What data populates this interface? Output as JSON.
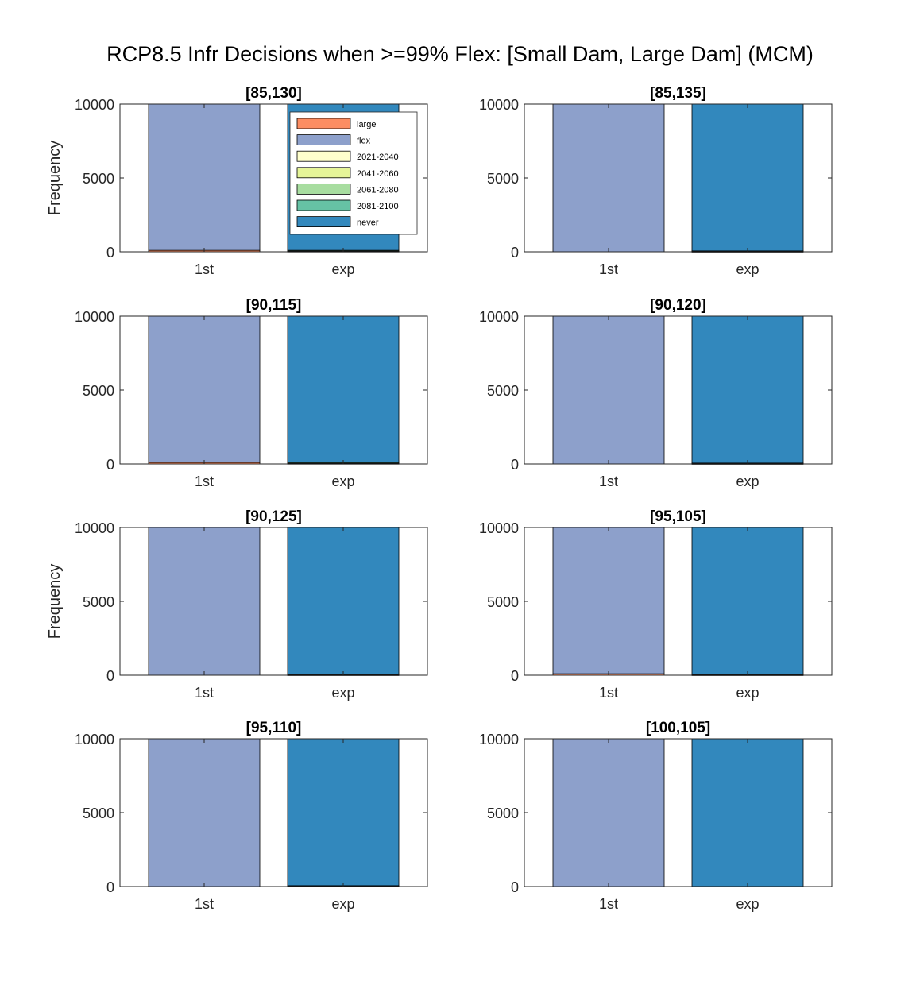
{
  "figure": {
    "suptitle": "RCP8.5 Infr Decisions when >=99% Flex: [Small Dam, Large Dam] (MCM)"
  },
  "colors": {
    "large": "#fc8d62",
    "flex": "#8da0cb",
    "2021-2040": "#ffffcc",
    "2041-2060": "#e6f598",
    "2061-2080": "#a8dda0",
    "2081-2100": "#66c2a5",
    "never": "#3288bd"
  },
  "legend": {
    "entries": [
      "large",
      "flex",
      "2021-2040",
      "2041-2060",
      "2061-2080",
      "2081-2100",
      "never"
    ],
    "placement": "inside top-right of first panel"
  },
  "chart_data": [
    {
      "type": "bar",
      "stacked": true,
      "title": "[85,130]",
      "categories": [
        "1st",
        "exp"
      ],
      "ylabel": "Frequency",
      "ylim": [
        0,
        10000
      ],
      "yticks": [
        0,
        5000,
        10000
      ],
      "grid": false,
      "series": [
        {
          "name": "large",
          "values": [
            100,
            0
          ]
        },
        {
          "name": "flex",
          "values": [
            9900,
            0
          ]
        },
        {
          "name": "2021-2040",
          "values": [
            0,
            0
          ]
        },
        {
          "name": "2041-2060",
          "values": [
            0,
            20
          ]
        },
        {
          "name": "2061-2080",
          "values": [
            0,
            30
          ]
        },
        {
          "name": "2081-2100",
          "values": [
            0,
            50
          ]
        },
        {
          "name": "never",
          "values": [
            0,
            9900
          ]
        }
      ]
    },
    {
      "type": "bar",
      "stacked": true,
      "title": "[85,135]",
      "categories": [
        "1st",
        "exp"
      ],
      "ylabel": "",
      "ylim": [
        0,
        10000
      ],
      "yticks": [
        0,
        5000,
        10000
      ],
      "grid": false,
      "series": [
        {
          "name": "large",
          "values": [
            0,
            0
          ]
        },
        {
          "name": "flex",
          "values": [
            10000,
            0
          ]
        },
        {
          "name": "2021-2040",
          "values": [
            0,
            0
          ]
        },
        {
          "name": "2041-2060",
          "values": [
            0,
            10
          ]
        },
        {
          "name": "2061-2080",
          "values": [
            0,
            20
          ]
        },
        {
          "name": "2081-2100",
          "values": [
            0,
            30
          ]
        },
        {
          "name": "never",
          "values": [
            0,
            9940
          ]
        }
      ]
    },
    {
      "type": "bar",
      "stacked": true,
      "title": "[90,115]",
      "categories": [
        "1st",
        "exp"
      ],
      "ylabel": "",
      "ylim": [
        0,
        10000
      ],
      "yticks": [
        0,
        5000,
        10000
      ],
      "grid": false,
      "series": [
        {
          "name": "large",
          "values": [
            100,
            0
          ]
        },
        {
          "name": "flex",
          "values": [
            9900,
            0
          ]
        },
        {
          "name": "2021-2040",
          "values": [
            0,
            0
          ]
        },
        {
          "name": "2041-2060",
          "values": [
            0,
            20
          ]
        },
        {
          "name": "2061-2080",
          "values": [
            0,
            40
          ]
        },
        {
          "name": "2081-2100",
          "values": [
            0,
            60
          ]
        },
        {
          "name": "never",
          "values": [
            0,
            9880
          ]
        }
      ]
    },
    {
      "type": "bar",
      "stacked": true,
      "title": "[90,120]",
      "categories": [
        "1st",
        "exp"
      ],
      "ylabel": "",
      "ylim": [
        0,
        10000
      ],
      "yticks": [
        0,
        5000,
        10000
      ],
      "grid": false,
      "series": [
        {
          "name": "large",
          "values": [
            0,
            0
          ]
        },
        {
          "name": "flex",
          "values": [
            10000,
            0
          ]
        },
        {
          "name": "2021-2040",
          "values": [
            0,
            0
          ]
        },
        {
          "name": "2041-2060",
          "values": [
            0,
            10
          ]
        },
        {
          "name": "2061-2080",
          "values": [
            0,
            20
          ]
        },
        {
          "name": "2081-2100",
          "values": [
            0,
            30
          ]
        },
        {
          "name": "never",
          "values": [
            0,
            9940
          ]
        }
      ]
    },
    {
      "type": "bar",
      "stacked": true,
      "title": "[90,125]",
      "categories": [
        "1st",
        "exp"
      ],
      "ylabel": "Frequency",
      "ylim": [
        0,
        10000
      ],
      "yticks": [
        0,
        5000,
        10000
      ],
      "grid": false,
      "series": [
        {
          "name": "large",
          "values": [
            0,
            0
          ]
        },
        {
          "name": "flex",
          "values": [
            10000,
            0
          ]
        },
        {
          "name": "2021-2040",
          "values": [
            0,
            0
          ]
        },
        {
          "name": "2041-2060",
          "values": [
            0,
            10
          ]
        },
        {
          "name": "2061-2080",
          "values": [
            0,
            20
          ]
        },
        {
          "name": "2081-2100",
          "values": [
            0,
            30
          ]
        },
        {
          "name": "never",
          "values": [
            0,
            9940
          ]
        }
      ]
    },
    {
      "type": "bar",
      "stacked": true,
      "title": "[95,105]",
      "categories": [
        "1st",
        "exp"
      ],
      "ylabel": "",
      "ylim": [
        0,
        10000
      ],
      "yticks": [
        0,
        5000,
        10000
      ],
      "grid": false,
      "series": [
        {
          "name": "large",
          "values": [
            100,
            0
          ]
        },
        {
          "name": "flex",
          "values": [
            9900,
            0
          ]
        },
        {
          "name": "2021-2040",
          "values": [
            0,
            0
          ]
        },
        {
          "name": "2041-2060",
          "values": [
            0,
            10
          ]
        },
        {
          "name": "2061-2080",
          "values": [
            0,
            20
          ]
        },
        {
          "name": "2081-2100",
          "values": [
            0,
            30
          ]
        },
        {
          "name": "never",
          "values": [
            0,
            9940
          ]
        }
      ]
    },
    {
      "type": "bar",
      "stacked": true,
      "title": "[95,110]",
      "categories": [
        "1st",
        "exp"
      ],
      "ylabel": "",
      "ylim": [
        0,
        10000
      ],
      "yticks": [
        0,
        5000,
        10000
      ],
      "grid": false,
      "series": [
        {
          "name": "large",
          "values": [
            0,
            0
          ]
        },
        {
          "name": "flex",
          "values": [
            10000,
            0
          ]
        },
        {
          "name": "2021-2040",
          "values": [
            0,
            0
          ]
        },
        {
          "name": "2041-2060",
          "values": [
            0,
            10
          ]
        },
        {
          "name": "2061-2080",
          "values": [
            0,
            20
          ]
        },
        {
          "name": "2081-2100",
          "values": [
            0,
            30
          ]
        },
        {
          "name": "never",
          "values": [
            0,
            9940
          ]
        }
      ]
    },
    {
      "type": "bar",
      "stacked": true,
      "title": "[100,105]",
      "categories": [
        "1st",
        "exp"
      ],
      "ylabel": "",
      "ylim": [
        0,
        10000
      ],
      "yticks": [
        0,
        5000,
        10000
      ],
      "grid": false,
      "series": [
        {
          "name": "large",
          "values": [
            0,
            0
          ]
        },
        {
          "name": "flex",
          "values": [
            10000,
            0
          ]
        },
        {
          "name": "2021-2040",
          "values": [
            0,
            0
          ]
        },
        {
          "name": "2041-2060",
          "values": [
            0,
            0
          ]
        },
        {
          "name": "2061-2080",
          "values": [
            0,
            0
          ]
        },
        {
          "name": "2081-2100",
          "values": [
            0,
            10
          ]
        },
        {
          "name": "never",
          "values": [
            0,
            9990
          ]
        }
      ]
    }
  ]
}
